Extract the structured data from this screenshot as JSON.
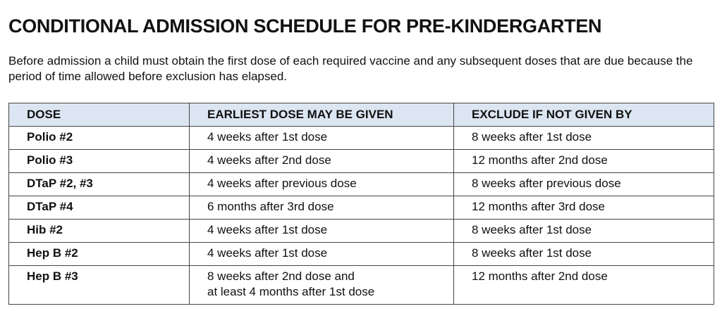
{
  "title": "CONDITIONAL ADMISSION SCHEDULE FOR PRE-KINDERGARTEN",
  "intro": "Before admission a child must obtain the first dose of each required vaccine and any subsequent doses that are due because the period of time allowed before exclusion has elapsed.",
  "table": {
    "header_color": "#dce6f2",
    "columns": [
      "DOSE",
      "EARLIEST DOSE MAY BE GIVEN",
      "EXCLUDE IF NOT GIVEN BY"
    ],
    "rows": [
      {
        "dose": "Polio #2",
        "earliest": [
          "4 weeks after 1st dose"
        ],
        "exclude": "8 weeks after 1st dose"
      },
      {
        "dose": "Polio #3",
        "earliest": [
          "4 weeks after 2nd dose"
        ],
        "exclude": "12 months after 2nd dose"
      },
      {
        "dose": "DTaP #2, #3",
        "earliest": [
          "4 weeks after previous dose"
        ],
        "exclude": "8 weeks after previous dose"
      },
      {
        "dose": "DTaP #4",
        "earliest": [
          "6 months after 3rd dose"
        ],
        "exclude": "12 months after 3rd dose"
      },
      {
        "dose": "Hib #2",
        "earliest": [
          "4 weeks after 1st dose"
        ],
        "exclude": "8 weeks after 1st dose"
      },
      {
        "dose": "Hep B #2",
        "earliest": [
          "4 weeks after 1st dose"
        ],
        "exclude": "8 weeks after 1st dose"
      },
      {
        "dose": "Hep B #3",
        "earliest": [
          "8 weeks after 2nd dose and",
          "at least 4 months after 1st dose"
        ],
        "exclude": "12 months after 2nd dose"
      }
    ]
  }
}
